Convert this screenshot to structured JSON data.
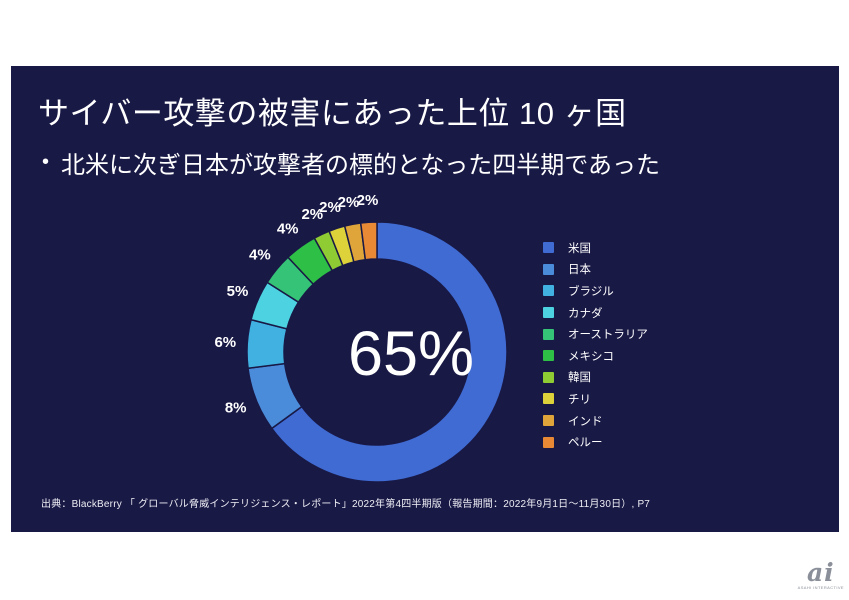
{
  "slide": {
    "background": "#191946",
    "title": "サイバー攻撃の被害にあった上位 10 ヶ国",
    "bullet_marker": "•",
    "bullet": "北米に次ぎ日本が攻撃者の標的となった四半期であった",
    "source": "出典：BlackBerry 「 グローバル脅威インテリジェンス・レポート」2022年第4四半期版（報告期間：2022年9月1日～11月30日）, P7"
  },
  "chart_data": {
    "type": "pie",
    "subtype": "donut",
    "title": "サイバー攻撃の被害にあった上位 10 ヶ国",
    "center_label": "65%",
    "categories": [
      "米国",
      "日本",
      "ブラジル",
      "カナダ",
      "オーストラリア",
      "メキシコ",
      "韓国",
      "チリ",
      "インド",
      "ペルー"
    ],
    "values": [
      65,
      8,
      6,
      5,
      4,
      4,
      2,
      2,
      2,
      2
    ],
    "percent_labels": [
      "",
      "8%",
      "6%",
      "5%",
      "4%",
      "4%",
      "2%",
      "2%",
      "2%",
      "2%"
    ],
    "colors": [
      "#3f6bd3",
      "#4b8cda",
      "#41b1e2",
      "#4cd2e0",
      "#35c377",
      "#2ebf47",
      "#8fcc33",
      "#ddd23a",
      "#dfa53a",
      "#e88a35"
    ],
    "start_angle_deg": 0,
    "direction": "clockwise",
    "legend_position": "right",
    "separator_color": "#191946"
  },
  "watermark": {
    "text": "ai",
    "subtext": "ASAHI INTERACTIVE",
    "color": "#8a8f99"
  }
}
